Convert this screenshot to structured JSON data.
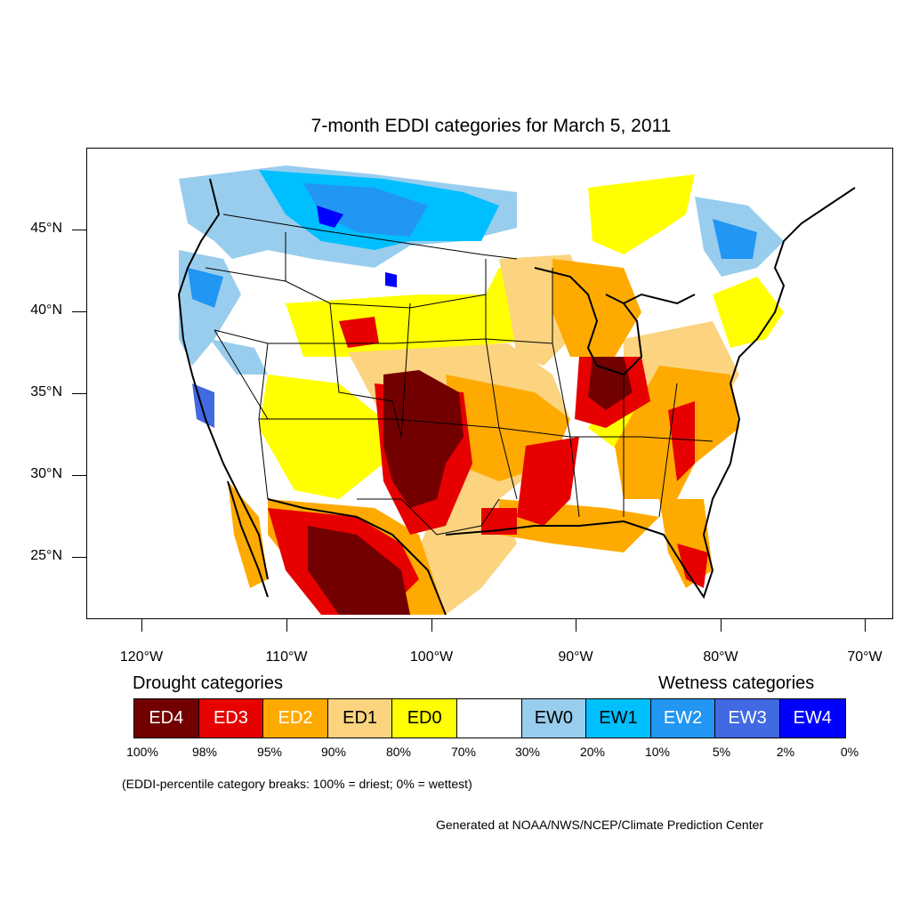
{
  "title": "7-month EDDI categories for March 5, 2011",
  "lat_labels": [
    "45°N",
    "40°N",
    "35°N",
    "30°N",
    "25°N"
  ],
  "lon_labels": [
    "120°W",
    "110°W",
    "100°W",
    "90°W",
    "80°W",
    "70°W"
  ],
  "drought_heading": "Drought categories",
  "wetness_heading": "Wetness categories",
  "legend": [
    {
      "label": "ED4",
      "color": "#730000",
      "text_color": "#ffffff"
    },
    {
      "label": "ED3",
      "color": "#e60000",
      "text_color": "#ffffff"
    },
    {
      "label": "ED2",
      "color": "#ffaa00",
      "text_color": "#ffffff"
    },
    {
      "label": "ED1",
      "color": "#fcd37f",
      "text_color": "#000000"
    },
    {
      "label": "ED0",
      "color": "#ffff00",
      "text_color": "#000000"
    },
    {
      "label": "",
      "color": "#ffffff",
      "text_color": "#000000"
    },
    {
      "label": "EW0",
      "color": "#98cdee",
      "text_color": "#000000"
    },
    {
      "label": "EW1",
      "color": "#00bfff",
      "text_color": "#000000"
    },
    {
      "label": "EW2",
      "color": "#2196f3",
      "text_color": "#ffffff"
    },
    {
      "label": "EW3",
      "color": "#4169e1",
      "text_color": "#ffffff"
    },
    {
      "label": "EW4",
      "color": "#0000ff",
      "text_color": "#ffffff"
    }
  ],
  "breaks": [
    "100%",
    "98%",
    "95%",
    "90%",
    "80%",
    "70%",
    "30%",
    "20%",
    "10%",
    "5%",
    "2%",
    "0%"
  ],
  "footnote": "(EDDI-percentile category breaks: 100% = driest; 0% = wettest)",
  "credit": "Generated at NOAA/NWS/NCEP/Climate Prediction Center"
}
